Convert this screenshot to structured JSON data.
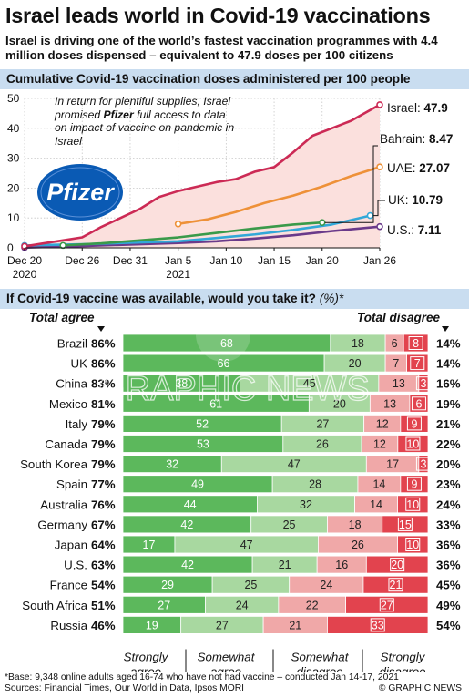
{
  "header": {
    "title": "Israel leads world in Covid-19 vaccinations",
    "subtitle": "Israel is driving one of the world’s fastest vaccination programmes with 4.4 million doses dispensed – equivalent to 47.9 doses per 100 citizens"
  },
  "colors": {
    "israel": "#cc2a55",
    "uae": "#ee9138",
    "bahrain": "#3a9a4a",
    "uk": "#32a8d8",
    "us": "#6a3a8a",
    "pfizer": "#0a5ab4",
    "band": "#c9ddf0",
    "strongly_agree": "#5cb85c",
    "somewhat_agree": "#a8d8a0",
    "somewhat_disagree": "#f0a8a8",
    "strongly_disagree": "#e2434e"
  },
  "chart_data": [
    {
      "type": "line",
      "title": "Cumulative Covid-19 vaccination doses administered per 100 people",
      "ylim": [
        0,
        50
      ],
      "yticks": [
        "0",
        "10",
        "20",
        "30",
        "40",
        "50"
      ],
      "xlim": [
        "2020-12-20",
        "2021-01-26"
      ],
      "xticks": [
        {
          "date": "2020-12-20",
          "label": "Dec 20",
          "sublabel": "2020"
        },
        {
          "date": "2020-12-26",
          "label": "Dec 26",
          "sublabel": ""
        },
        {
          "date": "2020-12-31",
          "label": "Dec 31",
          "sublabel": ""
        },
        {
          "date": "2021-01-05",
          "label": "Jan 5",
          "sublabel": "2021"
        },
        {
          "date": "2021-01-10",
          "label": "Jan 10",
          "sublabel": ""
        },
        {
          "date": "2021-01-15",
          "label": "Jan 15",
          "sublabel": ""
        },
        {
          "date": "2021-01-20",
          "label": "Jan 20",
          "sublabel": ""
        },
        {
          "date": "2021-01-26",
          "label": "Jan 26",
          "sublabel": ""
        }
      ],
      "grid": true,
      "annotation": "In return for plentiful supplies, Israel promised Pfizer full access to data on impact of vaccine on pandemic in Israel",
      "annotation_bold": "Pfizer",
      "logo_text": "Pfizer",
      "series": [
        {
          "name": "Israel",
          "value_label": "47.9",
          "color_key": "israel",
          "points": [
            [
              "2020-12-20",
              0.5
            ],
            [
              "2020-12-22",
              1.5
            ],
            [
              "2020-12-24",
              2.5
            ],
            [
              "2020-12-26",
              3.5
            ],
            [
              "2020-12-28",
              7
            ],
            [
              "2020-12-30",
              10
            ],
            [
              "2021-01-01",
              13
            ],
            [
              "2021-01-03",
              17
            ],
            [
              "2021-01-05",
              19
            ],
            [
              "2021-01-07",
              20.5
            ],
            [
              "2021-01-09",
              22
            ],
            [
              "2021-01-11",
              23
            ],
            [
              "2021-01-13",
              25.5
            ],
            [
              "2021-01-15",
              27
            ],
            [
              "2021-01-17",
              32
            ],
            [
              "2021-01-19",
              37.5
            ],
            [
              "2021-01-21",
              40
            ],
            [
              "2021-01-23",
              42.5
            ],
            [
              "2021-01-26",
              47.9
            ]
          ]
        },
        {
          "name": "UAE",
          "value_label": "27.07",
          "color_key": "uae",
          "points": [
            [
              "2021-01-05",
              8
            ],
            [
              "2021-01-08",
              9.5
            ],
            [
              "2021-01-11",
              12
            ],
            [
              "2021-01-14",
              15
            ],
            [
              "2021-01-17",
              17.5
            ],
            [
              "2021-01-20",
              20.5
            ],
            [
              "2021-01-23",
              24
            ],
            [
              "2021-01-26",
              27.07
            ]
          ]
        },
        {
          "name": "Bahrain",
          "value_label": "8.47",
          "color_key": "bahrain",
          "points": [
            [
              "2020-12-24",
              0.8
            ],
            [
              "2020-12-28",
              1.5
            ],
            [
              "2021-01-01",
              2.5
            ],
            [
              "2021-01-05",
              3.5
            ],
            [
              "2021-01-09",
              5
            ],
            [
              "2021-01-13",
              6.5
            ],
            [
              "2021-01-17",
              7.8
            ],
            [
              "2021-01-20",
              8.47
            ]
          ]
        },
        {
          "name": "UK",
          "value_label": "10.79",
          "color_key": "uk",
          "points": [
            [
              "2020-12-20",
              0.8
            ],
            [
              "2020-12-26",
              1.2
            ],
            [
              "2021-01-01",
              1.8
            ],
            [
              "2021-01-05",
              2.2
            ],
            [
              "2021-01-09",
              3.3
            ],
            [
              "2021-01-13",
              4.5
            ],
            [
              "2021-01-17",
              6
            ],
            [
              "2021-01-21",
              7.8
            ],
            [
              "2021-01-25",
              10.79
            ]
          ]
        },
        {
          "name": "U.S.",
          "value_label": "7.11",
          "color_key": "us",
          "points": [
            [
              "2020-12-20",
              0.1
            ],
            [
              "2020-12-26",
              0.6
            ],
            [
              "2021-01-01",
              1.2
            ],
            [
              "2021-01-05",
              1.6
            ],
            [
              "2021-01-09",
              2.2
            ],
            [
              "2021-01-13",
              3.1
            ],
            [
              "2021-01-17",
              4.2
            ],
            [
              "2021-01-21",
              5.6
            ],
            [
              "2021-01-26",
              7.11
            ]
          ]
        }
      ]
    },
    {
      "type": "bar",
      "stacked": true,
      "orientation": "horizontal",
      "title": "If Covid-19 vaccine was available, would you take it?",
      "title_suffix": "(%)*",
      "left_header": "Total agree",
      "right_header": "Total disagree",
      "series_names": [
        "Strongly agree",
        "Somewhat agree",
        "Somewhat disagree",
        "Strongly disagree"
      ],
      "series_labels": [
        [
          "Strongly",
          "agree"
        ],
        [
          "Somewhat",
          "agree"
        ],
        [
          "Somewhat",
          "disagree"
        ],
        [
          "Strongly",
          "disagree"
        ]
      ],
      "rows": [
        {
          "country": "Brazil",
          "agree": "86%",
          "disagree": "14%",
          "values": [
            68,
            18,
            6,
            8
          ]
        },
        {
          "country": "UK",
          "agree": "86%",
          "disagree": "14%",
          "values": [
            66,
            20,
            7,
            7
          ]
        },
        {
          "country": "China",
          "agree": "83%",
          "disagree": "16%",
          "values": [
            38,
            45,
            13,
            3
          ]
        },
        {
          "country": "Mexico",
          "agree": "81%",
          "disagree": "19%",
          "values": [
            61,
            20,
            13,
            6
          ]
        },
        {
          "country": "Italy",
          "agree": "79%",
          "disagree": "21%",
          "values": [
            52,
            27,
            12,
            9
          ]
        },
        {
          "country": "Canada",
          "agree": "79%",
          "disagree": "22%",
          "values": [
            53,
            26,
            12,
            10
          ]
        },
        {
          "country": "South Korea",
          "agree": "79%",
          "disagree": "20%",
          "values": [
            32,
            47,
            17,
            3
          ]
        },
        {
          "country": "Spain",
          "agree": "77%",
          "disagree": "23%",
          "values": [
            49,
            28,
            14,
            9
          ]
        },
        {
          "country": "Australia",
          "agree": "76%",
          "disagree": "24%",
          "values": [
            44,
            32,
            14,
            10
          ]
        },
        {
          "country": "Germany",
          "agree": "67%",
          "disagree": "33%",
          "values": [
            42,
            25,
            18,
            15
          ]
        },
        {
          "country": "Japan",
          "agree": "64%",
          "disagree": "36%",
          "values": [
            17,
            47,
            26,
            10
          ]
        },
        {
          "country": "U.S.",
          "agree": "63%",
          "disagree": "36%",
          "values": [
            42,
            21,
            16,
            20
          ]
        },
        {
          "country": "France",
          "agree": "54%",
          "disagree": "45%",
          "values": [
            29,
            25,
            24,
            21
          ]
        },
        {
          "country": "South Africa",
          "agree": "51%",
          "disagree": "49%",
          "values": [
            27,
            24,
            22,
            27
          ]
        },
        {
          "country": "Russia",
          "agree": "46%",
          "disagree": "54%",
          "values": [
            19,
            27,
            21,
            33
          ]
        }
      ]
    }
  ],
  "footer": {
    "note": "*Base: 9,348 online adults aged 16-74 who have not had vaccine – conducted Jan 14-17, 2021",
    "sources": "Sources: Financial Times, Our World in Data, Ipsos MORI",
    "credit": "© GRAPHIC NEWS",
    "watermark": "GRAPHIC NEWS"
  }
}
